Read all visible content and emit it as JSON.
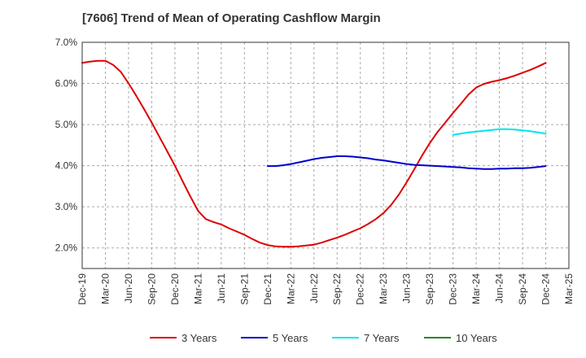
{
  "chart_data": {
    "type": "line",
    "title": "[7606]  Trend of Mean of Operating Cashflow Margin",
    "xlabel": "",
    "ylabel": "",
    "x_ticks": [
      "Dec-19",
      "Mar-20",
      "Jun-20",
      "Sep-20",
      "Dec-20",
      "Mar-21",
      "Jun-21",
      "Sep-21",
      "Dec-21",
      "Mar-22",
      "Jun-22",
      "Sep-22",
      "Dec-22",
      "Mar-23",
      "Jun-23",
      "Sep-23",
      "Dec-23",
      "Mar-24",
      "Jun-24",
      "Sep-24",
      "Dec-24",
      "Mar-25"
    ],
    "y_ticks": [
      "2.0%",
      "3.0%",
      "4.0%",
      "5.0%",
      "6.0%",
      "7.0%"
    ],
    "ylim": [
      1.5,
      7.0
    ],
    "y_unit": "%",
    "grid": true,
    "legend_position": "bottom",
    "series": [
      {
        "name": "3 Years",
        "color": "#dd0000",
        "points": [
          {
            "x": "Dec-19",
            "y": 6.5
          },
          {
            "x": "Jan-20",
            "y": 6.53
          },
          {
            "x": "Feb-20",
            "y": 6.55
          },
          {
            "x": "Mar-20",
            "y": 6.55
          },
          {
            "x": "Apr-20",
            "y": 6.45
          },
          {
            "x": "May-20",
            "y": 6.28
          },
          {
            "x": "Jun-20",
            "y": 6.0
          },
          {
            "x": "Jul-20",
            "y": 5.7
          },
          {
            "x": "Aug-20",
            "y": 5.38
          },
          {
            "x": "Sep-20",
            "y": 5.05
          },
          {
            "x": "Oct-20",
            "y": 4.7
          },
          {
            "x": "Nov-20",
            "y": 4.35
          },
          {
            "x": "Dec-20",
            "y": 4.0
          },
          {
            "x": "Jan-21",
            "y": 3.62
          },
          {
            "x": "Feb-21",
            "y": 3.25
          },
          {
            "x": "Mar-21",
            "y": 2.9
          },
          {
            "x": "Apr-21",
            "y": 2.7
          },
          {
            "x": "May-21",
            "y": 2.63
          },
          {
            "x": "Jun-21",
            "y": 2.57
          },
          {
            "x": "Jul-21",
            "y": 2.48
          },
          {
            "x": "Aug-21",
            "y": 2.4
          },
          {
            "x": "Sep-21",
            "y": 2.32
          },
          {
            "x": "Oct-21",
            "y": 2.22
          },
          {
            "x": "Nov-21",
            "y": 2.13
          },
          {
            "x": "Dec-21",
            "y": 2.07
          },
          {
            "x": "Jan-22",
            "y": 2.04
          },
          {
            "x": "Feb-22",
            "y": 2.03
          },
          {
            "x": "Mar-22",
            "y": 2.03
          },
          {
            "x": "Apr-22",
            "y": 2.04
          },
          {
            "x": "May-22",
            "y": 2.06
          },
          {
            "x": "Jun-22",
            "y": 2.08
          },
          {
            "x": "Jul-22",
            "y": 2.13
          },
          {
            "x": "Aug-22",
            "y": 2.19
          },
          {
            "x": "Sep-22",
            "y": 2.25
          },
          {
            "x": "Oct-22",
            "y": 2.32
          },
          {
            "x": "Nov-22",
            "y": 2.4
          },
          {
            "x": "Dec-22",
            "y": 2.48
          },
          {
            "x": "Jan-23",
            "y": 2.58
          },
          {
            "x": "Feb-23",
            "y": 2.7
          },
          {
            "x": "Mar-23",
            "y": 2.85
          },
          {
            "x": "Apr-23",
            "y": 3.05
          },
          {
            "x": "May-23",
            "y": 3.3
          },
          {
            "x": "Jun-23",
            "y": 3.6
          },
          {
            "x": "Jul-23",
            "y": 3.92
          },
          {
            "x": "Aug-23",
            "y": 4.25
          },
          {
            "x": "Sep-23",
            "y": 4.55
          },
          {
            "x": "Oct-23",
            "y": 4.82
          },
          {
            "x": "Nov-23",
            "y": 5.05
          },
          {
            "x": "Dec-23",
            "y": 5.28
          },
          {
            "x": "Jan-24",
            "y": 5.5
          },
          {
            "x": "Feb-24",
            "y": 5.73
          },
          {
            "x": "Mar-24",
            "y": 5.9
          },
          {
            "x": "Apr-24",
            "y": 5.99
          },
          {
            "x": "May-24",
            "y": 6.04
          },
          {
            "x": "Jun-24",
            "y": 6.08
          },
          {
            "x": "Jul-24",
            "y": 6.13
          },
          {
            "x": "Aug-24",
            "y": 6.19
          },
          {
            "x": "Sep-24",
            "y": 6.26
          },
          {
            "x": "Oct-24",
            "y": 6.33
          },
          {
            "x": "Nov-24",
            "y": 6.41
          },
          {
            "x": "Dec-24",
            "y": 6.5
          }
        ]
      },
      {
        "name": "5 Years",
        "color": "#0000cc",
        "points": [
          {
            "x": "Dec-21",
            "y": 3.99
          },
          {
            "x": "Jan-22",
            "y": 3.99
          },
          {
            "x": "Feb-22",
            "y": 4.01
          },
          {
            "x": "Mar-22",
            "y": 4.04
          },
          {
            "x": "Apr-22",
            "y": 4.08
          },
          {
            "x": "May-22",
            "y": 4.12
          },
          {
            "x": "Jun-22",
            "y": 4.16
          },
          {
            "x": "Jul-22",
            "y": 4.19
          },
          {
            "x": "Aug-22",
            "y": 4.21
          },
          {
            "x": "Sep-22",
            "y": 4.23
          },
          {
            "x": "Oct-22",
            "y": 4.23
          },
          {
            "x": "Nov-22",
            "y": 4.22
          },
          {
            "x": "Dec-22",
            "y": 4.2
          },
          {
            "x": "Jan-23",
            "y": 4.18
          },
          {
            "x": "Feb-23",
            "y": 4.15
          },
          {
            "x": "Mar-23",
            "y": 4.13
          },
          {
            "x": "Apr-23",
            "y": 4.1
          },
          {
            "x": "May-23",
            "y": 4.07
          },
          {
            "x": "Jun-23",
            "y": 4.04
          },
          {
            "x": "Jul-23",
            "y": 4.02
          },
          {
            "x": "Aug-23",
            "y": 4.01
          },
          {
            "x": "Sep-23",
            "y": 4.0
          },
          {
            "x": "Oct-23",
            "y": 3.99
          },
          {
            "x": "Nov-23",
            "y": 3.98
          },
          {
            "x": "Dec-23",
            "y": 3.97
          },
          {
            "x": "Jan-24",
            "y": 3.96
          },
          {
            "x": "Feb-24",
            "y": 3.94
          },
          {
            "x": "Mar-24",
            "y": 3.93
          },
          {
            "x": "Apr-24",
            "y": 3.92
          },
          {
            "x": "May-24",
            "y": 3.92
          },
          {
            "x": "Jun-24",
            "y": 3.93
          },
          {
            "x": "Jul-24",
            "y": 3.93
          },
          {
            "x": "Aug-24",
            "y": 3.94
          },
          {
            "x": "Sep-24",
            "y": 3.94
          },
          {
            "x": "Oct-24",
            "y": 3.95
          },
          {
            "x": "Nov-24",
            "y": 3.97
          },
          {
            "x": "Dec-24",
            "y": 3.99
          }
        ]
      },
      {
        "name": "7 Years",
        "color": "#00e5ee",
        "points": [
          {
            "x": "Dec-23",
            "y": 4.75
          },
          {
            "x": "Jan-24",
            "y": 4.78
          },
          {
            "x": "Feb-24",
            "y": 4.81
          },
          {
            "x": "Mar-24",
            "y": 4.83
          },
          {
            "x": "Apr-24",
            "y": 4.85
          },
          {
            "x": "May-24",
            "y": 4.87
          },
          {
            "x": "Jun-24",
            "y": 4.89
          },
          {
            "x": "Jul-24",
            "y": 4.89
          },
          {
            "x": "Aug-24",
            "y": 4.88
          },
          {
            "x": "Sep-24",
            "y": 4.86
          },
          {
            "x": "Oct-24",
            "y": 4.84
          },
          {
            "x": "Nov-24",
            "y": 4.81
          },
          {
            "x": "Dec-24",
            "y": 4.78
          }
        ]
      },
      {
        "name": "10 Years",
        "color": "#228b22",
        "points": []
      }
    ]
  }
}
